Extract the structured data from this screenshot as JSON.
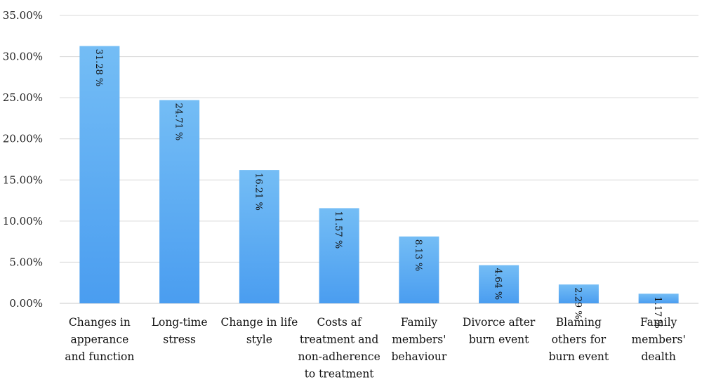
{
  "chart_data": {
    "type": "bar",
    "categories": [
      "Changes in appearance and function",
      "Long-time stress",
      "Change in life style",
      "Costs af treatment and non-adherence to treatment",
      "Family members' behaviour",
      "Divorce after burn event",
      "Blaming others for burn event",
      "Family members' dealth"
    ],
    "category_lines": [
      [
        "Changes in",
        "apperance",
        "and function"
      ],
      [
        "Long-time",
        "stress"
      ],
      [
        "Change in life",
        "style"
      ],
      [
        "Costs af",
        "treatment and",
        "non-adherence",
        "to treatment"
      ],
      [
        "Family",
        "members'",
        "behaviour"
      ],
      [
        "Divorce after",
        "burn event"
      ],
      [
        "Blaming",
        "others for",
        "burn event"
      ],
      [
        "Family",
        "members'",
        "dealth"
      ]
    ],
    "values": [
      31.28,
      24.71,
      16.21,
      11.57,
      8.13,
      4.64,
      2.29,
      1.17
    ],
    "data_labels": [
      "31.28 %",
      "24.71 %",
      "16.21 %",
      "11.57 %",
      "8.13 %",
      "4.64 %",
      "2.29 %",
      "1.17 %"
    ],
    "y_ticks": [
      0,
      5,
      10,
      15,
      20,
      25,
      30,
      35
    ],
    "y_tick_labels": [
      "0.00%",
      "5.00%",
      "10.00%",
      "15.00%",
      "20.00%",
      "25.00%",
      "30.00%",
      "35.00%"
    ],
    "ylim": [
      0,
      35
    ],
    "grid": true,
    "legend": "none",
    "title": "",
    "xlabel": "",
    "ylabel": "",
    "colors": {
      "bar_top": "#74bdf5",
      "bar_bottom": "#4a9df0",
      "grid": "#d9d9d9"
    }
  }
}
